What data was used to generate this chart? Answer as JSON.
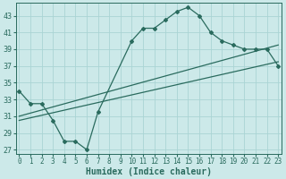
{
  "xlabel": "Humidex (Indice chaleur)",
  "bg_color": "#cce9e9",
  "grid_color": "#aad4d4",
  "line_color": "#2a6b5e",
  "line1_x": [
    0,
    1,
    2,
    3,
    4,
    5,
    6,
    7,
    10,
    11,
    12,
    13,
    14,
    15,
    16,
    17,
    18,
    19,
    20,
    21,
    22,
    23
  ],
  "line1_y": [
    34,
    32.5,
    32.5,
    30.5,
    28,
    28,
    27,
    31.5,
    40,
    41.5,
    41.5,
    42.5,
    43.5,
    44,
    43,
    41,
    40,
    39.5,
    39,
    39,
    39,
    37
  ],
  "line2_x": [
    0,
    23
  ],
  "line2_y": [
    31,
    39.5
  ],
  "line3_x": [
    0,
    23
  ],
  "line3_y": [
    30.5,
    37.5
  ],
  "yticks": [
    27,
    29,
    31,
    33,
    35,
    37,
    39,
    41,
    43
  ],
  "xtick_labels": [
    "0",
    "1",
    "2",
    "3",
    "4",
    "5",
    "6",
    "7",
    "8",
    "9",
    "10",
    "11",
    "12",
    "13",
    "14",
    "15",
    "16",
    "17",
    "18",
    "19",
    "20",
    "21",
    "22",
    "23"
  ],
  "xticks": [
    0,
    1,
    2,
    3,
    4,
    5,
    6,
    7,
    8,
    9,
    10,
    11,
    12,
    13,
    14,
    15,
    16,
    17,
    18,
    19,
    20,
    21,
    22,
    23
  ],
  "xlim": [
    -0.3,
    23.3
  ],
  "ylim": [
    26.5,
    44.5
  ],
  "xlabel_fontsize": 7,
  "tick_fontsize": 5.5
}
